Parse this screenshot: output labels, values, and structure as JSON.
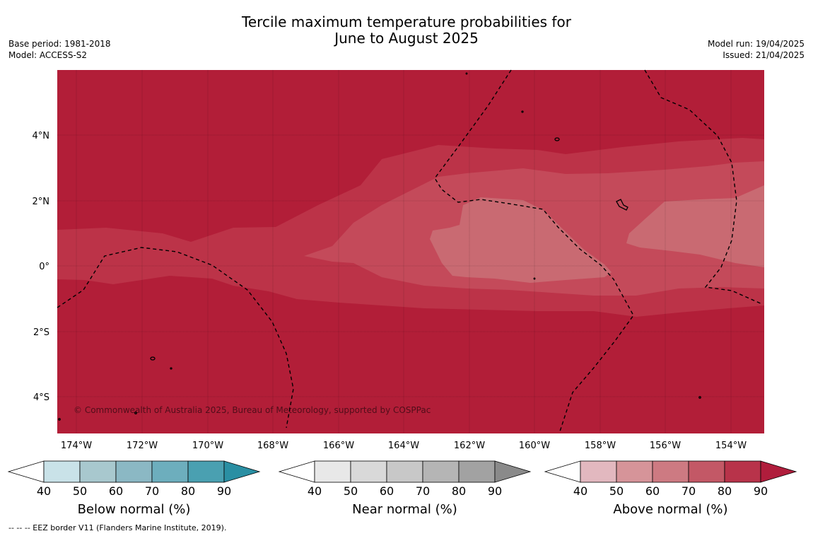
{
  "title": {
    "line1": "Tercile maximum temperature probabilities for",
    "line2": "June to August 2025"
  },
  "meta_left": {
    "base_period": "Base period: 1981-2018",
    "model": "Model: ACCESS-S2"
  },
  "meta_right": {
    "model_run": "Model run: 19/04/2025",
    "issued": "Issued: 21/04/2025"
  },
  "map": {
    "lat_labels": [
      "4°N",
      "2°N",
      "0°",
      "2°S",
      "4°S"
    ],
    "lon_labels": [
      "174°W",
      "172°W",
      "170°W",
      "168°W",
      "166°W",
      "164°W",
      "162°W",
      "160°W",
      "158°W",
      "156°W",
      "154°W"
    ],
    "copyright": "© Commonwealth of Australia 2025, Bureau of Meteorology, supported by COSPPac",
    "category_colors": {
      "above_80_90": "#b21e38",
      "above_70_80": "#bc3348",
      "above_60_70": "#c44a5a",
      "above_50_60": "#c96a72"
    }
  },
  "legends": [
    {
      "label": "Below normal (%)",
      "ticks": [
        "40",
        "50",
        "60",
        "70",
        "80",
        "90"
      ],
      "colors": [
        "#c9e2e8",
        "#a8c8ce",
        "#8bb8c4",
        "#6daebd",
        "#4aa0b1",
        "#2a8fa3"
      ]
    },
    {
      "label": "Near normal (%)",
      "ticks": [
        "40",
        "50",
        "60",
        "70",
        "80",
        "90"
      ],
      "colors": [
        "#e8e8e8",
        "#d9d9d9",
        "#c8c8c8",
        "#b5b5b5",
        "#a2a2a2",
        "#8a8a8a"
      ]
    },
    {
      "label": "Above normal (%)",
      "ticks": [
        "40",
        "50",
        "60",
        "70",
        "80",
        "90"
      ],
      "colors": [
        "#e2b8bf",
        "#d69499",
        "#cd7a82",
        "#c35866",
        "#b8334a",
        "#b01d3c"
      ]
    }
  ],
  "footnote": "--  --  -- EEZ border V11 (Flanders Marine Institute, 2019)."
}
